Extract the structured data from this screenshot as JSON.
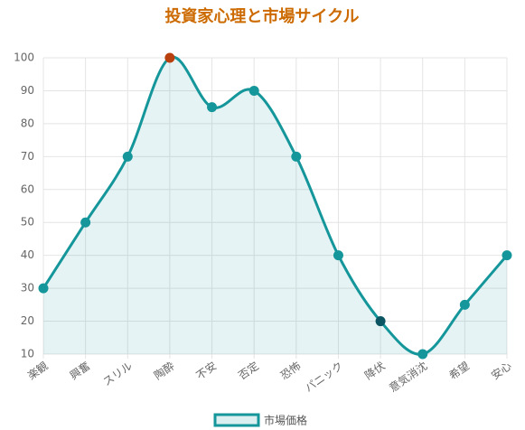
{
  "chart_data": {
    "type": "line",
    "title": "投資家心理と市場サイクル",
    "categories": [
      "楽観",
      "興奮",
      "スリル",
      "陶酔",
      "不安",
      "否定",
      "恐怖",
      "パニック",
      "降伏",
      "意気消沈",
      "希望",
      "安心"
    ],
    "series": [
      {
        "name": "市場価格",
        "color": "#14969a",
        "values": [
          30,
          50,
          70,
          100,
          85,
          90,
          70,
          40,
          20,
          10,
          25,
          40
        ],
        "point_colors": [
          "#14969a",
          "#14969a",
          "#14969a",
          "#b8400e",
          "#14969a",
          "#14969a",
          "#14969a",
          "#14969a",
          "#0b5563",
          "#14969a",
          "#14969a",
          "#14969a"
        ]
      }
    ],
    "ylim": [
      10,
      100
    ],
    "yticks": [
      10,
      20,
      30,
      40,
      50,
      60,
      70,
      80,
      90,
      100
    ],
    "grid": true,
    "area": true,
    "smooth": true,
    "legend": "bottom"
  }
}
